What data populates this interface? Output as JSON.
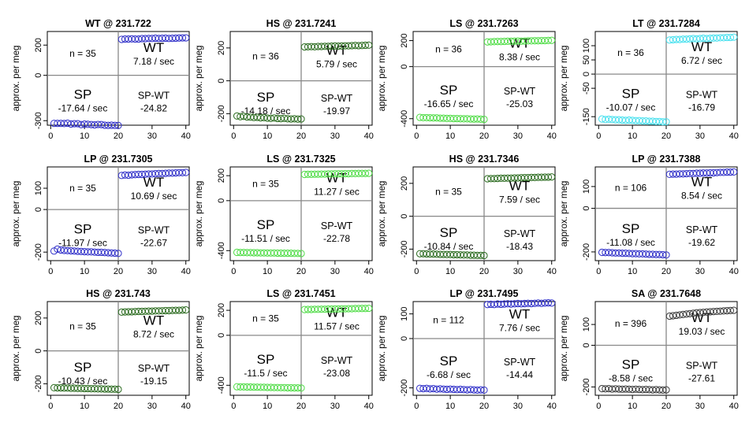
{
  "chart_data": [
    {
      "type": "scatter",
      "title": "WT @ 231.722",
      "ylabel": "approx. per meg",
      "ylim": [
        -330,
        290
      ],
      "yticks": [
        -300,
        0,
        200
      ],
      "xticks": [
        0,
        10,
        20,
        30,
        40
      ],
      "xlim": [
        -1,
        41
      ],
      "n_label": "n = 35",
      "wt_label": "WT",
      "wt_rate": "7.18 / sec",
      "sp_label": "SP",
      "sp_rate": "-17.64 / sec",
      "diff_label": "SP-WT",
      "diff_value": "-24.82",
      "color": "#2e2ec8",
      "sp_values": [
        -318,
        -318,
        -318,
        -319,
        -317,
        -322,
        -320,
        -320,
        -326,
        -323,
        -324,
        -326,
        -328,
        -325,
        -326,
        -330,
        -331,
        -330,
        -331,
        -332
      ],
      "wt_values": [
        238,
        240,
        240,
        241,
        240,
        240,
        243,
        243,
        244,
        244,
        246,
        244,
        245,
        246,
        244,
        245,
        246,
        247,
        248,
        248
      ]
    },
    {
      "type": "scatter",
      "title": "HS @ 231.7241",
      "ylabel": "approx. per meg",
      "ylim": [
        -270,
        300
      ],
      "yticks": [
        -200,
        0,
        200
      ],
      "xticks": [
        0,
        10,
        20,
        30,
        40
      ],
      "xlim": [
        -1,
        41
      ],
      "n_label": "n = 36",
      "wt_label": "WT",
      "wt_rate": "5.79 / sec",
      "sp_label": "SP",
      "sp_rate": "-14.18 / sec",
      "diff_label": "SP-WT",
      "diff_value": "-19.97",
      "color": "#2a6a1e",
      "sp_values": [
        -214,
        -218,
        -216,
        -220,
        -221,
        -223,
        -222,
        -225,
        -224,
        -227,
        -228,
        -226,
        -229,
        -230,
        -228,
        -231,
        -232,
        -231,
        -233,
        -232
      ],
      "wt_values": [
        206,
        207,
        208,
        207,
        209,
        209,
        210,
        210,
        211,
        212,
        211,
        212,
        213,
        213,
        214,
        215,
        214,
        215,
        216,
        217
      ]
    },
    {
      "type": "scatter",
      "title": "LS @ 231.7263",
      "ylabel": "approx. per meg",
      "ylim": [
        -450,
        270
      ],
      "yticks": [
        -400,
        0,
        200
      ],
      "xticks": [
        0,
        10,
        20,
        30,
        40
      ],
      "xlim": [
        -1,
        41
      ],
      "n_label": "n = 36",
      "wt_label": "WT",
      "wt_rate": "8.38 / sec",
      "sp_label": "SP",
      "sp_rate": "-16.65 / sec",
      "diff_label": "SP-WT",
      "diff_value": "-25.03",
      "color": "#4fdc46",
      "sp_values": [
        -390,
        -392,
        -392,
        -393,
        -394,
        -394,
        -396,
        -396,
        -398,
        -398,
        -399,
        -399,
        -400,
        -401,
        -401,
        -402,
        -403,
        -402,
        -404,
        -405
      ],
      "wt_values": [
        190,
        191,
        192,
        193,
        193,
        194,
        195,
        195,
        196,
        197,
        196,
        197,
        198,
        198,
        199,
        199,
        200,
        200,
        201,
        202
      ]
    },
    {
      "type": "scatter",
      "title": "LT @ 231.7284",
      "ylabel": "approx. per meg",
      "ylim": [
        -180,
        150
      ],
      "yticks": [
        -150,
        -50,
        0,
        50,
        100
      ],
      "xticks": [
        0,
        10,
        20,
        30,
        40
      ],
      "xlim": [
        -1,
        41
      ],
      "n_label": "n = 36",
      "wt_label": "WT",
      "wt_rate": "6.72 / sec",
      "sp_label": "SP",
      "sp_rate": "-10.07 / sec",
      "diff_label": "SP-WT",
      "diff_value": "-16.79",
      "color": "#46e0ee",
      "sp_values": [
        -158,
        -160,
        -159,
        -160,
        -161,
        -161,
        -162,
        -163,
        -162,
        -163,
        -164,
        -164,
        -165,
        -165,
        -166,
        -166,
        -167,
        -167,
        -168,
        -168
      ],
      "wt_values": [
        120,
        121,
        122,
        122,
        123,
        123,
        124,
        125,
        124,
        125,
        126,
        125,
        126,
        127,
        127,
        128,
        128,
        129,
        129,
        130
      ]
    },
    {
      "type": "scatter",
      "title": "LP @ 231.7305",
      "ylabel": "approx. per meg",
      "ylim": [
        -240,
        200
      ],
      "yticks": [
        -200,
        0,
        100
      ],
      "xticks": [
        0,
        10,
        20,
        30,
        40
      ],
      "xlim": [
        -1,
        41
      ],
      "n_label": "n = 35",
      "wt_label": "WT",
      "wt_rate": "10.69 / sec",
      "sp_label": "SP",
      "sp_rate": "-11.97 / sec",
      "diff_label": "SP-WT",
      "diff_value": "-22.67",
      "color": "#2e2ec8",
      "sp_values": [
        -195,
        -186,
        -190,
        -192,
        -193,
        -194,
        -195,
        -196,
        -197,
        -198,
        -199,
        -199,
        -200,
        -201,
        -201,
        -202,
        -203,
        -204,
        -205,
        -206
      ],
      "wt_values": [
        160,
        162,
        161,
        163,
        164,
        165,
        165,
        166,
        167,
        167,
        168,
        169,
        169,
        170,
        171,
        171,
        172,
        173,
        173,
        174
      ]
    },
    {
      "type": "scatter",
      "title": "LS @ 231.7325",
      "ylabel": "approx. per meg",
      "ylim": [
        -480,
        270
      ],
      "yticks": [
        -400,
        0,
        200
      ],
      "xticks": [
        0,
        10,
        20,
        30,
        40
      ],
      "xlim": [
        -1,
        41
      ],
      "n_label": "n = 35",
      "wt_label": "WT",
      "wt_rate": "11.27 / sec",
      "sp_label": "SP",
      "sp_rate": "-11.51 / sec",
      "diff_label": "SP-WT",
      "diff_value": "-22.78",
      "color": "#4fdc46",
      "sp_values": [
        -414,
        -415,
        -415,
        -416,
        -416,
        -417,
        -417,
        -418,
        -418,
        -419,
        -419,
        -419,
        -420,
        -420,
        -421,
        -421,
        -421,
        -422,
        -422,
        -423
      ],
      "wt_values": [
        210,
        211,
        211,
        212,
        212,
        213,
        213,
        214,
        214,
        215,
        215,
        215,
        216,
        216,
        217,
        217,
        218,
        218,
        218,
        219
      ]
    },
    {
      "type": "scatter",
      "title": "HS @ 231.7346",
      "ylabel": "approx. per meg",
      "ylim": [
        -270,
        300
      ],
      "yticks": [
        -200,
        0,
        200
      ],
      "xticks": [
        0,
        10,
        20,
        30,
        40
      ],
      "xlim": [
        -1,
        41
      ],
      "n_label": "n = 35",
      "wt_label": "WT",
      "wt_rate": "7.59 / sec",
      "sp_label": "SP",
      "sp_rate": "-10.84 / sec",
      "diff_label": "SP-WT",
      "diff_value": "-18.43",
      "color": "#2a6a1e",
      "sp_values": [
        -228,
        -228,
        -229,
        -230,
        -230,
        -231,
        -232,
        -232,
        -233,
        -233,
        -234,
        -234,
        -235,
        -236,
        -236,
        -237,
        -237,
        -238,
        -238,
        -239
      ],
      "wt_values": [
        228,
        229,
        229,
        230,
        231,
        231,
        232,
        232,
        233,
        233,
        234,
        235,
        235,
        236,
        236,
        237,
        237,
        238,
        238,
        239
      ]
    },
    {
      "type": "scatter",
      "title": "LP @ 231.7388",
      "ylabel": "approx. per meg",
      "ylim": [
        -240,
        190
      ],
      "yticks": [
        -200,
        0,
        100
      ],
      "xticks": [
        0,
        10,
        20,
        30,
        40
      ],
      "xlim": [
        -1,
        41
      ],
      "n_label": "n = 106",
      "wt_label": "WT",
      "wt_rate": "8.54 / sec",
      "sp_label": "SP",
      "sp_rate": "-11.08 / sec",
      "diff_label": "SP-WT",
      "diff_value": "-19.62",
      "color": "#2e2ec8",
      "sp_values": [
        -202,
        -203,
        -203,
        -204,
        -205,
        -205,
        -206,
        -206,
        -207,
        -208,
        -208,
        -209,
        -209,
        -210,
        -211,
        -211,
        -212,
        -212,
        -213,
        -214
      ],
      "wt_values": [
        156,
        157,
        157,
        158,
        158,
        159,
        160,
        160,
        161,
        161,
        162,
        162,
        163,
        163,
        164,
        165,
        165,
        166,
        166,
        167
      ]
    },
    {
      "type": "scatter",
      "title": "HS @ 231.743",
      "ylabel": "approx. per meg",
      "ylim": [
        -270,
        300
      ],
      "yticks": [
        -200,
        0,
        200
      ],
      "xticks": [
        0,
        10,
        20,
        30,
        40
      ],
      "xlim": [
        -1,
        41
      ],
      "n_label": "n = 35",
      "wt_label": "WT",
      "wt_rate": "8.72 / sec",
      "sp_label": "SP",
      "sp_rate": "-10.43 / sec",
      "diff_label": "SP-WT",
      "diff_value": "-19.15",
      "color": "#2a6a1e",
      "sp_values": [
        -224,
        -225,
        -225,
        -226,
        -226,
        -227,
        -227,
        -228,
        -228,
        -229,
        -229,
        -230,
        -230,
        -231,
        -231,
        -232,
        -232,
        -233,
        -233,
        -234
      ],
      "wt_values": [
        236,
        237,
        238,
        238,
        239,
        240,
        240,
        241,
        242,
        242,
        243,
        243,
        244,
        245,
        245,
        246,
        247,
        247,
        248,
        249
      ]
    },
    {
      "type": "scatter",
      "title": "LS @ 231.7451",
      "ylabel": "approx. per meg",
      "ylim": [
        -480,
        270
      ],
      "yticks": [
        -400,
        0,
        200
      ],
      "xticks": [
        0,
        10,
        20,
        30,
        40
      ],
      "xlim": [
        -1,
        41
      ],
      "n_label": "n = 35",
      "wt_label": "WT",
      "wt_rate": "11.57 / sec",
      "sp_label": "SP",
      "sp_rate": "-11.5 / sec",
      "diff_label": "SP-WT",
      "diff_value": "-23.08",
      "color": "#4fdc46",
      "sp_values": [
        -412,
        -413,
        -413,
        -414,
        -414,
        -415,
        -415,
        -416,
        -416,
        -417,
        -417,
        -418,
        -418,
        -419,
        -419,
        -420,
        -420,
        -421,
        -421,
        -422
      ],
      "wt_values": [
        206,
        207,
        207,
        208,
        208,
        209,
        209,
        210,
        210,
        211,
        211,
        212,
        212,
        213,
        213,
        214,
        214,
        215,
        215,
        216
      ]
    },
    {
      "type": "scatter",
      "title": "LP @ 231.7495",
      "ylabel": "approx. per meg",
      "ylim": [
        -230,
        150
      ],
      "yticks": [
        -200,
        0,
        100
      ],
      "xticks": [
        0,
        10,
        20,
        30,
        40
      ],
      "xlim": [
        -1,
        41
      ],
      "n_label": "n = 112",
      "wt_label": "WT",
      "wt_rate": "7.76 / sec",
      "sp_label": "SP",
      "sp_rate": "-6.68 / sec",
      "diff_label": "SP-WT",
      "diff_value": "-14.44",
      "color": "#2e2ec8",
      "sp_values": [
        -202,
        -203,
        -202,
        -204,
        -203,
        -205,
        -204,
        -205,
        -206,
        -205,
        -206,
        -207,
        -206,
        -207,
        -208,
        -207,
        -208,
        -209,
        -208,
        -209
      ],
      "wt_values": [
        138,
        139,
        138,
        140,
        139,
        140,
        141,
        140,
        141,
        142,
        141,
        142,
        143,
        142,
        143,
        144,
        143,
        144,
        145,
        144
      ]
    },
    {
      "type": "scatter",
      "title": "SA @ 231.7648",
      "ylabel": "approx. per meg",
      "ylim": [
        -240,
        210
      ],
      "yticks": [
        -200,
        0,
        100
      ],
      "xticks": [
        0,
        10,
        20,
        30,
        40
      ],
      "xlim": [
        -1,
        41
      ],
      "n_label": "n = 396",
      "wt_label": "WT",
      "wt_rate": "19.03 / sec",
      "sp_label": "SP",
      "sp_rate": "-8.58 / sec",
      "diff_label": "SP-WT",
      "diff_value": "-27.61",
      "color": "#3a3a3a",
      "sp_values": [
        -208,
        -209,
        -208,
        -210,
        -209,
        -210,
        -211,
        -210,
        -211,
        -212,
        -211,
        -212,
        -213,
        -212,
        -213,
        -214,
        -213,
        -214,
        -215,
        -214
      ],
      "wt_values": [
        140,
        142,
        144,
        146,
        148,
        150,
        152,
        154,
        156,
        157,
        158,
        160,
        161,
        162,
        163,
        164,
        165,
        166,
        167,
        168
      ]
    }
  ]
}
